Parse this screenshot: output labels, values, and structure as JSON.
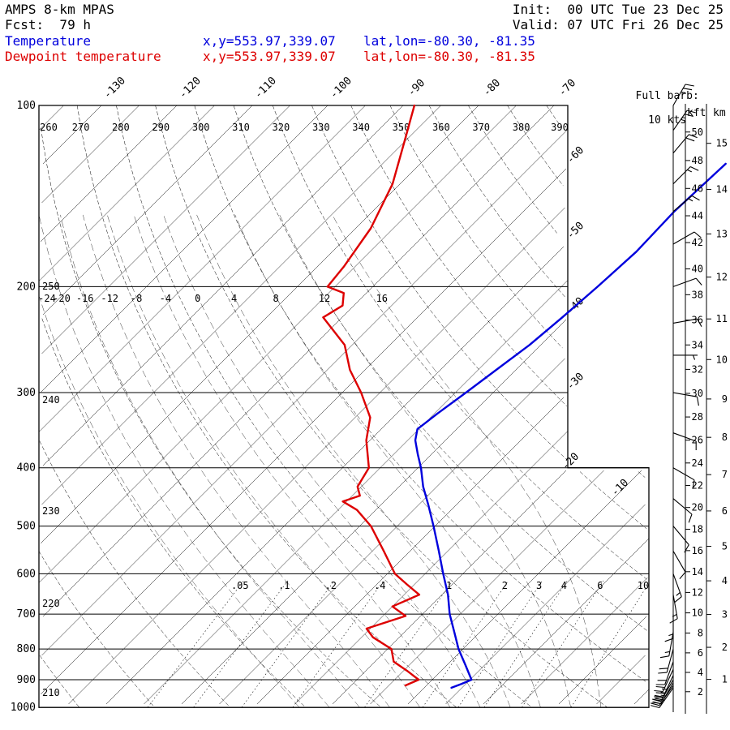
{
  "header": {
    "model": "AMPS 8-km MPAS",
    "fcst": "Fcst:  79 h",
    "init": "Init:  00 UTC Tue 23 Dec 25",
    "valid": "Valid: 07 UTC Fri 26 Dec 25"
  },
  "legend": {
    "temperature": {
      "label": "Temperature",
      "xy": "x,y=553.97,339.07",
      "latlon": "lat,lon=-80.30, -81.35",
      "color": "#0000dd"
    },
    "dewpoint": {
      "label": "Dewpoint temperature",
      "xy": "x,y=553.97,339.07",
      "latlon": "lat,lon=-80.30, -81.35",
      "color": "#dd0000"
    }
  },
  "barb_legend": {
    "line1": "Full barb:",
    "line2": "10 kts"
  },
  "height_scale": {
    "kft_label": "kft",
    "km_label": "km",
    "kft_values": [
      2,
      4,
      6,
      8,
      10,
      12,
      14,
      16,
      18,
      20,
      22,
      24,
      26,
      28,
      30,
      32,
      34,
      36,
      38,
      40,
      42,
      44,
      46,
      48,
      50
    ],
    "km_values": [
      1,
      2,
      3,
      4,
      5,
      6,
      7,
      8,
      9,
      10,
      11,
      12,
      13,
      14,
      15
    ]
  },
  "chart_data": {
    "type": "skewt_logp",
    "pressure_axis": {
      "unit": "hPa",
      "labels": [
        100,
        200,
        300,
        400,
        500,
        600,
        700,
        800,
        900,
        1000
      ],
      "range": [
        100,
        1000
      ]
    },
    "isotherm_step": 5,
    "isotherm_min": -140,
    "isotherm_max": 20,
    "isotherm_labels_top": [
      -130,
      -120,
      -110,
      -100,
      -90,
      -80,
      -70
    ],
    "isotherm_labels_right": [
      -60,
      -50,
      -40,
      -30,
      -20,
      -10
    ],
    "dry_adiabat_step": 10,
    "dry_adiabat_labels_top": [
      260,
      270,
      280,
      290,
      300,
      310,
      320,
      330,
      340,
      350,
      360,
      370,
      380,
      390
    ],
    "dry_adiabat_labels_left": [
      250,
      240,
      230,
      220,
      210
    ],
    "moist_adiabat_labels": [
      -24,
      -20,
      -16,
      -12,
      -8,
      -4,
      0,
      4,
      8,
      12,
      16
    ],
    "mixing_ratio_labels": [
      0.05,
      0.1,
      0.2,
      0.4,
      1,
      2,
      3,
      4,
      6,
      10
    ],
    "temperature_profile": [
      [
        125,
        -39.5
      ],
      [
        150,
        -40.0
      ],
      [
        175,
        -39.7
      ],
      [
        200,
        -40.2
      ],
      [
        225,
        -40.8
      ],
      [
        250,
        -41.5
      ],
      [
        275,
        -42.6
      ],
      [
        300,
        -43.6
      ],
      [
        325,
        -44.6
      ],
      [
        345,
        -45.2
      ],
      [
        360,
        -44.0
      ],
      [
        380,
        -41.8
      ],
      [
        400,
        -39.6
      ],
      [
        430,
        -36.8
      ],
      [
        460,
        -33.8
      ],
      [
        500,
        -30.2
      ],
      [
        550,
        -26.2
      ],
      [
        600,
        -22.6
      ],
      [
        650,
        -19.2
      ],
      [
        700,
        -16.4
      ],
      [
        750,
        -13.4
      ],
      [
        800,
        -10.6
      ],
      [
        850,
        -7.6
      ],
      [
        900,
        -4.8
      ],
      [
        915,
        -5.6
      ],
      [
        928,
        -6.4
      ]
    ],
    "dewpoint_profile": [
      [
        100,
        -88.5
      ],
      [
        115,
        -85.0
      ],
      [
        135,
        -81.0
      ],
      [
        160,
        -78.0
      ],
      [
        185,
        -76.5
      ],
      [
        200,
        -76.0
      ],
      [
        205,
        -73.0
      ],
      [
        215,
        -71.5
      ],
      [
        225,
        -72.5
      ],
      [
        250,
        -66.0
      ],
      [
        275,
        -62.0
      ],
      [
        300,
        -57.5
      ],
      [
        330,
        -53.0
      ],
      [
        360,
        -50.5
      ],
      [
        400,
        -46.5
      ],
      [
        430,
        -45.5
      ],
      [
        445,
        -44.0
      ],
      [
        455,
        -45.5
      ],
      [
        470,
        -42.5
      ],
      [
        500,
        -38.5
      ],
      [
        550,
        -33.5
      ],
      [
        600,
        -29.0
      ],
      [
        625,
        -26.0
      ],
      [
        650,
        -23.0
      ],
      [
        680,
        -25.0
      ],
      [
        705,
        -22.0
      ],
      [
        740,
        -25.5
      ],
      [
        765,
        -23.5
      ],
      [
        800,
        -19.5
      ],
      [
        840,
        -17.5
      ],
      [
        870,
        -14.5
      ],
      [
        900,
        -11.8
      ],
      [
        920,
        -12.8
      ]
    ],
    "wind_profile": [
      [
        100,
        30,
        25
      ],
      [
        110,
        35,
        20
      ],
      [
        120,
        40,
        20
      ],
      [
        135,
        45,
        15
      ],
      [
        150,
        50,
        15
      ],
      [
        170,
        60,
        10
      ],
      [
        200,
        70,
        10
      ],
      [
        230,
        80,
        10
      ],
      [
        260,
        90,
        5
      ],
      [
        300,
        100,
        10
      ],
      [
        350,
        110,
        10
      ],
      [
        400,
        120,
        10
      ],
      [
        450,
        130,
        10
      ],
      [
        500,
        140,
        10
      ],
      [
        550,
        150,
        10
      ],
      [
        600,
        160,
        15
      ],
      [
        650,
        170,
        15
      ],
      [
        700,
        180,
        15
      ],
      [
        750,
        190,
        15
      ],
      [
        800,
        195,
        20
      ],
      [
        840,
        200,
        20
      ],
      [
        865,
        205,
        20
      ],
      [
        885,
        205,
        25
      ],
      [
        900,
        210,
        25
      ],
      [
        910,
        210,
        25
      ],
      [
        920,
        215,
        25
      ],
      [
        928,
        215,
        30
      ]
    ]
  }
}
